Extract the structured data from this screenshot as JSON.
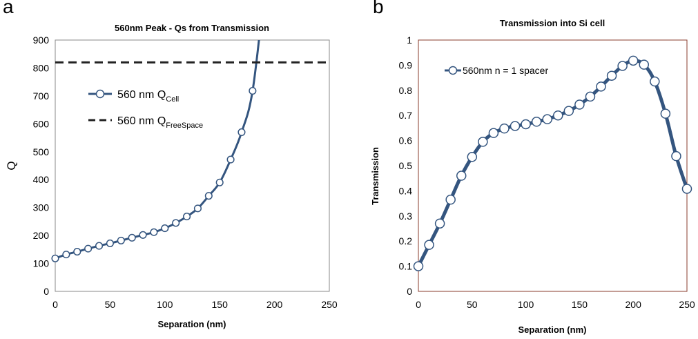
{
  "panels": {
    "a": "a",
    "b": "b"
  },
  "chart_data": [
    {
      "type": "line",
      "title": "560nm Peak - Qs from Transmission",
      "xlabel": "Separation (nm)",
      "ylabel": "Q",
      "xlim": [
        0,
        250
      ],
      "ylim": [
        0,
        900
      ],
      "xticks": [
        "0",
        "50",
        "100",
        "150",
        "200",
        "250"
      ],
      "yticks": [
        "0",
        "100",
        "200",
        "300",
        "400",
        "500",
        "600",
        "700",
        "800",
        "900"
      ],
      "grid": false,
      "legend_position": "upper-left",
      "series": [
        {
          "name": "560 nm Q",
          "name_sub": "Cell",
          "style": "line-with-markers",
          "color": "#34557f",
          "x": [
            0,
            10,
            20,
            30,
            40,
            50,
            60,
            70,
            80,
            90,
            100,
            110,
            120,
            130,
            140,
            150,
            160,
            170,
            180
          ],
          "y": [
            118,
            132,
            142,
            153,
            163,
            172,
            182,
            192,
            202,
            212,
            226,
            245,
            268,
            297,
            342,
            390,
            472,
            570,
            718
          ]
        },
        {
          "name": "560 nm Q",
          "name_sub": "FreeSpace",
          "style": "dashed",
          "color": "#222222",
          "x": [
            0,
            250
          ],
          "y": [
            820,
            820
          ]
        }
      ]
    },
    {
      "type": "line",
      "title": "Transmission into Si cell",
      "xlabel": "Separation (nm)",
      "ylabel": "Transmission",
      "xlim": [
        0,
        250
      ],
      "ylim": [
        0,
        1
      ],
      "xticks": [
        "0",
        "50",
        "100",
        "150",
        "200",
        "250"
      ],
      "yticks": [
        "0",
        "0.1",
        "0.2",
        "0.3",
        "0.4",
        "0.5",
        "0.6",
        "0.7",
        "0.8",
        "0.9",
        "1"
      ],
      "grid": false,
      "legend_position": "upper-left",
      "series": [
        {
          "name": "560nm n = 1 spacer",
          "style": "line-with-markers",
          "color": "#34557f",
          "x": [
            0,
            10,
            20,
            30,
            40,
            50,
            60,
            70,
            80,
            90,
            100,
            110,
            120,
            130,
            140,
            150,
            160,
            170,
            180,
            190,
            200,
            210,
            220,
            230,
            240,
            250
          ],
          "y": [
            0.1,
            0.185,
            0.27,
            0.365,
            0.46,
            0.535,
            0.595,
            0.63,
            0.648,
            0.658,
            0.665,
            0.675,
            0.685,
            0.7,
            0.718,
            0.743,
            0.775,
            0.815,
            0.858,
            0.897,
            0.918,
            0.902,
            0.835,
            0.707,
            0.538,
            0.408
          ]
        }
      ]
    }
  ]
}
